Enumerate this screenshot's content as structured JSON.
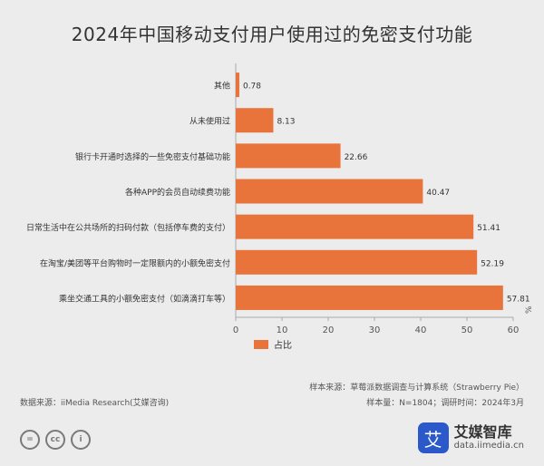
{
  "title": "2024年中国移动支付用户使用过的免密支付功能",
  "chart_data": {
    "type": "bar",
    "orientation": "horizontal",
    "title": "2024年中国移动支付用户使用过的免密支付功能",
    "categories": [
      "其他",
      "从未使用过",
      "银行卡开通时选择的一些免密支付基础功能",
      "各种APP的会员自动续费功能",
      "日常生活中在公共场所的扫码付款（包括停车费的支付）",
      "在淘宝/美团等平台购物时一定限额内的小额免密支付",
      "乘坐交通工具的小额免密支付（如滴滴打车等）"
    ],
    "series": [
      {
        "name": "占比",
        "values": [
          0.78,
          8.13,
          22.66,
          40.47,
          51.41,
          52.19,
          57.81
        ],
        "color": "#e8743b"
      }
    ],
    "value_labels": [
      "0.78",
      "8.13",
      "22.66",
      "40.47",
      "51.41",
      "52.19",
      "57.81"
    ],
    "xlim": [
      0,
      60
    ],
    "xticks": [
      0,
      10,
      20,
      30,
      40,
      50,
      60
    ],
    "xtick_labels": [
      "0",
      "10",
      "20",
      "30",
      "40",
      "50",
      "60"
    ],
    "unit": "%",
    "grid": false,
    "legend": "bottom-left"
  },
  "source_note_1": "样本来源：草莓派数据调查与计算系统（Strawberry Pie）",
  "source_note_2": "样本量：N=1804；调研时间：2024年3月",
  "data_source": "数据来源：iiMedia Research(艾媒咨询)",
  "cc_icons": [
    {
      "icon": "equals-icon",
      "glyph": "="
    },
    {
      "icon": "cc-icon",
      "glyph": "cc"
    },
    {
      "icon": "person-icon",
      "glyph": "i"
    }
  ],
  "logo": {
    "name": "艾媒智库",
    "url": "data.iimedia.cn",
    "glyph": "艾",
    "color": "#2b59c9"
  }
}
